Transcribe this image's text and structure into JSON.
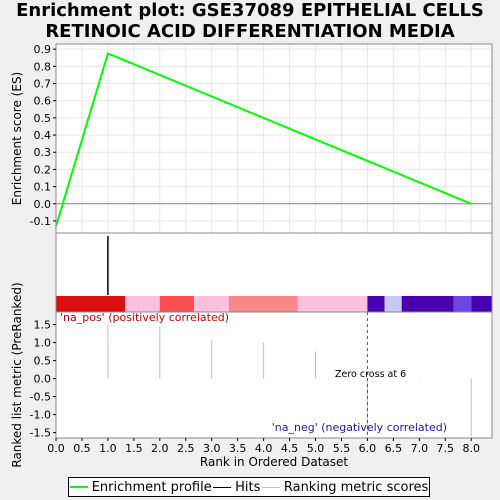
{
  "chart_data": {
    "title_lines": [
      "Enrichment plot: GSE37089 EPITHELIAL CELLS",
      "RETINOIC ACID DIFFERENTIATION MEDIA"
    ],
    "es_panel": {
      "type": "line",
      "ylabel": "Enrichment score (ES)",
      "ylim": [
        -0.17,
        0.93
      ],
      "yticks": [
        -0.1,
        0.0,
        0.1,
        0.2,
        0.3,
        0.4,
        0.5,
        0.6,
        0.7,
        0.8,
        0.9
      ],
      "ytick_labels": [
        "-0.1",
        "0.0",
        "0.1",
        "0.2",
        "0.3",
        "0.4",
        "0.5",
        "0.6",
        "0.7",
        "0.8",
        "0.9"
      ],
      "series": [
        {
          "color": "#00ff00",
          "x": [
            0,
            1,
            8
          ],
          "y": [
            -0.13,
            0.875,
            0.0
          ]
        }
      ]
    },
    "hits_panel": {
      "hits": [
        1
      ]
    },
    "heat_bar": {
      "segments": [
        {
          "x0": 0.0,
          "x1": 1.33,
          "color": "#d81010"
        },
        {
          "x0": 1.33,
          "x1": 2.0,
          "color": "#ffc0e0"
        },
        {
          "x0": 2.0,
          "x1": 2.66,
          "color": "#f85050"
        },
        {
          "x0": 2.66,
          "x1": 3.33,
          "color": "#ffc0e0"
        },
        {
          "x0": 3.33,
          "x1": 4.66,
          "color": "#f88888"
        },
        {
          "x0": 4.66,
          "x1": 6.0,
          "color": "#ffc0e0"
        },
        {
          "x0": 6.0,
          "x1": 6.33,
          "color": "#4800b0"
        },
        {
          "x0": 6.33,
          "x1": 6.66,
          "color": "#c8c8f8"
        },
        {
          "x0": 6.66,
          "x1": 7.66,
          "color": "#4a00b0"
        },
        {
          "x0": 7.66,
          "x1": 8.0,
          "color": "#6a48e0"
        },
        {
          "x0": 8.0,
          "x1": 8.4,
          "color": "#4600b0"
        }
      ]
    },
    "rank_panel": {
      "ylabel": "Ranked list metric (PreRanked)",
      "ylim": [
        -1.65,
        1.85
      ],
      "yticks": [
        -1.5,
        -1.0,
        -0.5,
        0.0,
        0.5,
        1.0,
        1.5
      ],
      "ytick_labels": [
        "-1.5",
        "-1.0",
        "-0.5",
        "0.0",
        "0.5",
        "1.0",
        "1.5"
      ],
      "bars": [
        {
          "x": 1,
          "value": 1.5
        },
        {
          "x": 2,
          "value": 1.45
        },
        {
          "x": 3,
          "value": 1.07
        },
        {
          "x": 4,
          "value": 1.0
        },
        {
          "x": 5,
          "value": 0.75
        },
        {
          "x": 6,
          "value": -1.55
        },
        {
          "x": 7,
          "value": -0.02
        },
        {
          "x": 8,
          "value": -1.6
        }
      ],
      "zero_cross_x": 6,
      "pos_label": "'na_pos' (positively correlated)",
      "neg_label": "'na_neg' (negatively correlated)",
      "zero_cross_label": "Zero cross at 6"
    },
    "xaxis": {
      "xlabel": "Rank in Ordered Dataset",
      "xlim": [
        0,
        8.4
      ],
      "xticks": [
        0.0,
        0.5,
        1.0,
        1.5,
        2.0,
        2.5,
        3.0,
        3.5,
        4.0,
        4.5,
        5.0,
        5.5,
        6.0,
        6.5,
        7.0,
        7.5,
        8.0
      ],
      "xtick_labels": [
        "0.0",
        "0.5",
        "1.0",
        "1.5",
        "2.0",
        "2.5",
        "3.0",
        "3.5",
        "4.0",
        "4.5",
        "5.0",
        "5.5",
        "6.0",
        "6.5",
        "7.0",
        "7.5",
        "8.0"
      ]
    },
    "legend": [
      {
        "label": "Enrichment profile",
        "color": "#00ff00"
      },
      {
        "label": "Hits",
        "color": "#000000"
      },
      {
        "label": "Ranking metric scores",
        "color": "#c0c0c0"
      }
    ]
  }
}
